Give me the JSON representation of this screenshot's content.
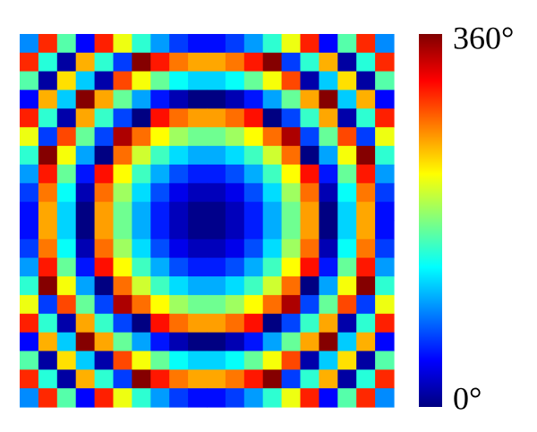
{
  "chart_data": {
    "type": "heatmap",
    "colormap": "jet",
    "zlim": [
      0,
      360
    ],
    "colorbar_ticks": [
      {
        "value": 0,
        "label": "0°"
      },
      {
        "value": 360,
        "label": "360°"
      }
    ],
    "z": [
      [
        94,
        301,
        165,
        46,
        304,
        219,
        151,
        100,
        66,
        49,
        49,
        66,
        100,
        151,
        219,
        304,
        46,
        165,
        301,
        94
      ],
      [
        301,
        148,
        12,
        253,
        151,
        66,
        358,
        307,
        273,
        256,
        256,
        273,
        307,
        358,
        66,
        151,
        253,
        12,
        148,
        301
      ],
      [
        165,
        12,
        236,
        117,
        15,
        290,
        222,
        171,
        137,
        120,
        120,
        137,
        171,
        222,
        290,
        15,
        117,
        236,
        12,
        165
      ],
      [
        46,
        253,
        117,
        358,
        256,
        171,
        103,
        52,
        18,
        1,
        1,
        18,
        52,
        103,
        171,
        256,
        358,
        117,
        253,
        46
      ],
      [
        304,
        151,
        15,
        256,
        154,
        69,
        1,
        310,
        276,
        259,
        259,
        276,
        310,
        1,
        69,
        154,
        256,
        15,
        151,
        304
      ],
      [
        219,
        66,
        290,
        171,
        69,
        344,
        276,
        225,
        191,
        174,
        174,
        191,
        225,
        276,
        344,
        69,
        171,
        290,
        66,
        219
      ],
      [
        151,
        358,
        222,
        103,
        1,
        276,
        208,
        157,
        123,
        106,
        106,
        123,
        157,
        208,
        276,
        1,
        103,
        222,
        358,
        151
      ],
      [
        100,
        307,
        171,
        52,
        310,
        225,
        157,
        106,
        72,
        55,
        55,
        72,
        106,
        157,
        225,
        310,
        52,
        171,
        307,
        100
      ],
      [
        66,
        273,
        137,
        18,
        276,
        191,
        123,
        72,
        38,
        21,
        21,
        38,
        72,
        123,
        191,
        276,
        18,
        137,
        273,
        66
      ],
      [
        49,
        256,
        120,
        1,
        259,
        174,
        106,
        55,
        21,
        4,
        4,
        21,
        55,
        106,
        174,
        259,
        1,
        120,
        256,
        49
      ],
      [
        49,
        256,
        120,
        1,
        259,
        174,
        106,
        55,
        21,
        4,
        4,
        21,
        55,
        106,
        174,
        259,
        1,
        120,
        256,
        49
      ],
      [
        66,
        273,
        137,
        18,
        276,
        191,
        123,
        72,
        38,
        21,
        21,
        38,
        72,
        123,
        191,
        276,
        18,
        137,
        273,
        66
      ],
      [
        100,
        307,
        171,
        52,
        310,
        225,
        157,
        106,
        72,
        55,
        55,
        72,
        106,
        157,
        225,
        310,
        52,
        171,
        307,
        100
      ],
      [
        151,
        358,
        222,
        103,
        1,
        276,
        208,
        157,
        123,
        106,
        106,
        123,
        157,
        208,
        276,
        1,
        103,
        222,
        358,
        151
      ],
      [
        219,
        66,
        290,
        171,
        69,
        344,
        276,
        225,
        191,
        174,
        174,
        191,
        225,
        276,
        344,
        69,
        171,
        290,
        66,
        219
      ],
      [
        304,
        151,
        15,
        256,
        154,
        69,
        1,
        310,
        276,
        259,
        259,
        276,
        310,
        1,
        69,
        154,
        256,
        15,
        151,
        304
      ],
      [
        46,
        253,
        117,
        358,
        256,
        171,
        103,
        52,
        18,
        1,
        1,
        18,
        52,
        103,
        171,
        256,
        358,
        117,
        253,
        46
      ],
      [
        165,
        12,
        236,
        117,
        15,
        290,
        222,
        171,
        137,
        120,
        120,
        137,
        171,
        222,
        290,
        15,
        117,
        236,
        12,
        165
      ],
      [
        301,
        148,
        12,
        253,
        151,
        66,
        358,
        307,
        273,
        256,
        256,
        273,
        307,
        358,
        66,
        151,
        253,
        12,
        148,
        301
      ],
      [
        94,
        301,
        165,
        46,
        304,
        219,
        151,
        100,
        66,
        49,
        49,
        66,
        100,
        151,
        219,
        304,
        46,
        165,
        301,
        94
      ]
    ]
  }
}
